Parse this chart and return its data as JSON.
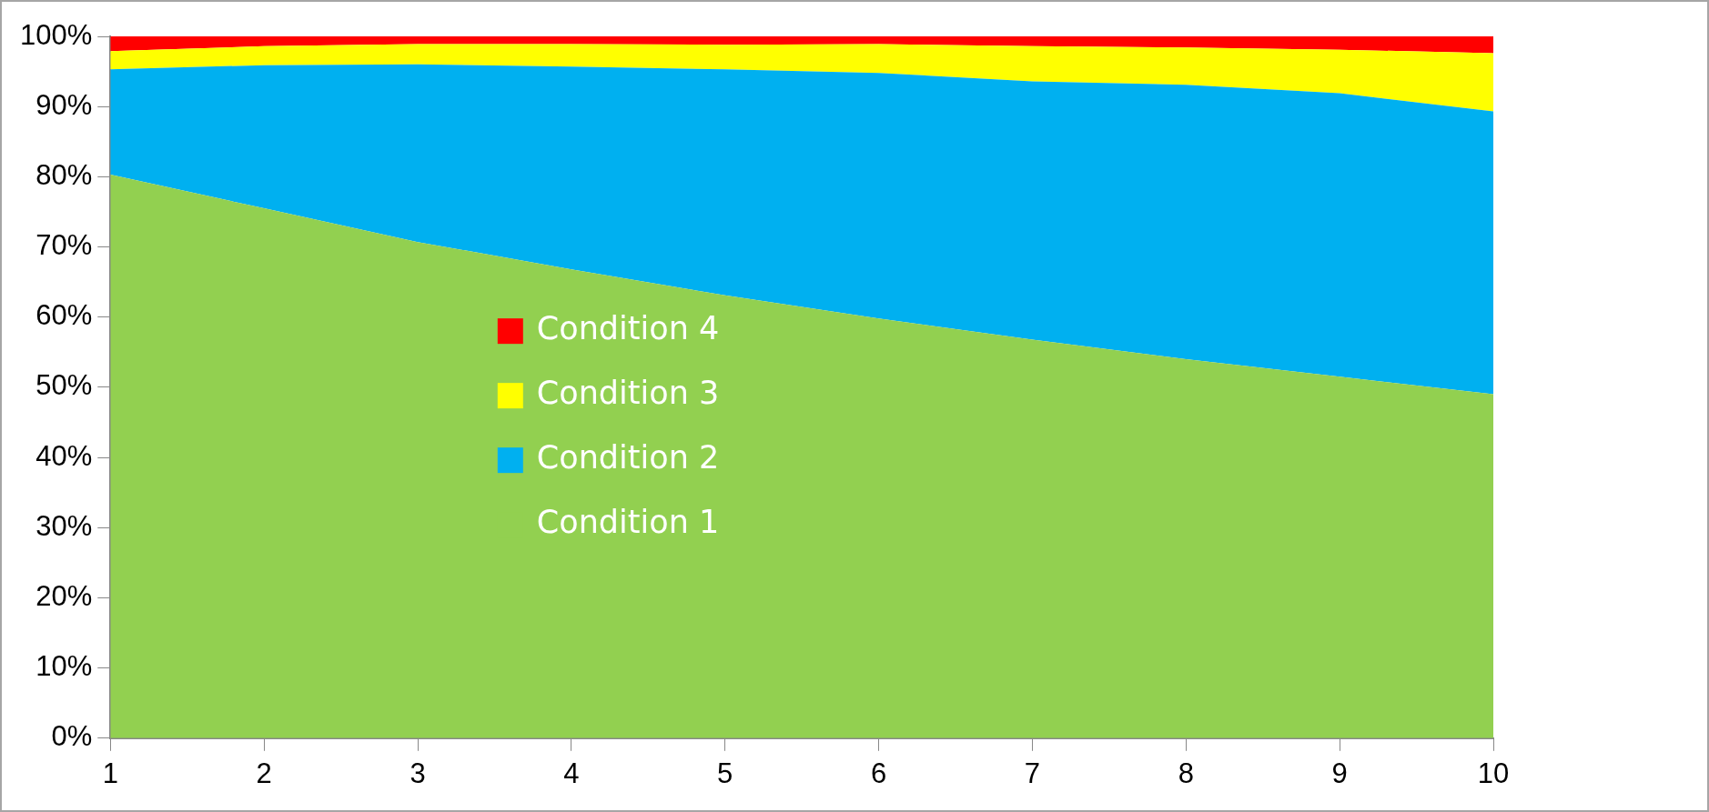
{
  "chart_data": {
    "type": "area",
    "stacked": true,
    "x": [
      1,
      2,
      3,
      4,
      5,
      6,
      7,
      8,
      9,
      10
    ],
    "xlim": [
      1,
      10
    ],
    "xticks": [
      1,
      2,
      3,
      4,
      5,
      6,
      7,
      8,
      9,
      10
    ],
    "ylim": [
      0,
      100
    ],
    "yticks": [
      {
        "value": 0,
        "label": "0%"
      },
      {
        "value": 10,
        "label": "10%"
      },
      {
        "value": 20,
        "label": "20%"
      },
      {
        "value": 30,
        "label": "30%"
      },
      {
        "value": 40,
        "label": "40%"
      },
      {
        "value": 50,
        "label": "50%"
      },
      {
        "value": 60,
        "label": "60%"
      },
      {
        "value": 70,
        "label": "70%"
      },
      {
        "value": 80,
        "label": "80%"
      },
      {
        "value": 90,
        "label": "90%"
      },
      {
        "value": 100,
        "label": "100%"
      }
    ],
    "grid": false,
    "legend": "left",
    "series": [
      {
        "name": "Condition 1",
        "color": "#92d050",
        "values": [
          80.3,
          75.5,
          70.7,
          66.8,
          63.1,
          59.8,
          56.8,
          54.0,
          51.5,
          49.0
        ]
      },
      {
        "name": "Condition 2",
        "color": "#00b0f0",
        "values": [
          15.0,
          20.4,
          25.3,
          28.9,
          32.2,
          35.0,
          36.8,
          39.1,
          40.4,
          40.3
        ]
      },
      {
        "name": "Condition 3",
        "color": "#ffff00",
        "values": [
          2.6,
          2.7,
          2.9,
          3.2,
          3.5,
          4.1,
          5.0,
          5.3,
          6.2,
          8.3
        ]
      },
      {
        "name": "Condition 4",
        "color": "#ff0000",
        "values": [
          2.1,
          1.4,
          1.1,
          1.1,
          1.2,
          1.1,
          1.4,
          1.6,
          1.9,
          2.4
        ]
      }
    ]
  }
}
